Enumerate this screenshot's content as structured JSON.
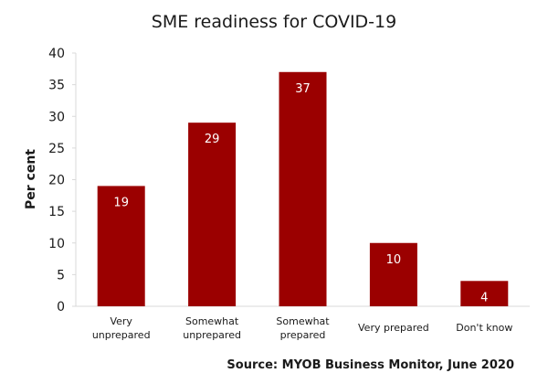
{
  "chart_data": {
    "type": "bar",
    "title": "SME readiness for COVID-19",
    "ylabel": "Per cent",
    "xlabel": "",
    "categories": [
      [
        "Very",
        "unprepared"
      ],
      [
        "Somewhat",
        "unprepared"
      ],
      [
        "Somewhat",
        "prepared"
      ],
      [
        "Very prepared"
      ],
      [
        "Don't know"
      ]
    ],
    "values": [
      19,
      29,
      37,
      10,
      4
    ],
    "ylim": [
      0,
      40
    ],
    "yticks": [
      0,
      5,
      10,
      15,
      20,
      25,
      30,
      35,
      40
    ],
    "grid": false,
    "legend": "none",
    "bar_color": "#9b0000",
    "source": "Source: MYOB Business Monitor, June 2020"
  }
}
